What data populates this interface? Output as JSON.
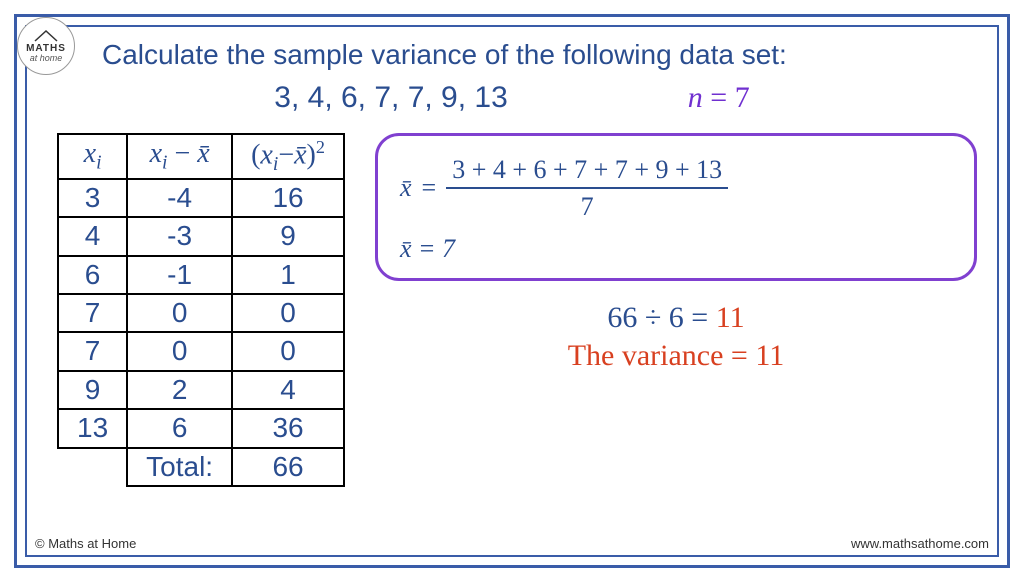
{
  "logo": {
    "text1": "MATHS",
    "text2": "at home"
  },
  "title": "Calculate the sample variance of the following data set:",
  "data_set_text": "3, 4, 6, 7, 7, 9, 13",
  "n_equation": {
    "var": "n",
    "eq": "=",
    "val": "7"
  },
  "table": {
    "headers": {
      "h1_var": "x",
      "h1_sub": "i",
      "h2_var1": "x",
      "h2_sub1": "i",
      "h2_minus": " − ",
      "h2_var2": "x̄",
      "h3_open": "(",
      "h3_var1": "x",
      "h3_sub1": "i",
      "h3_minus": "−",
      "h3_var2": "x̄",
      "h3_close": ")",
      "h3_sup": "2"
    },
    "rows": [
      {
        "xi": "3",
        "diff": "-4",
        "sq": "16"
      },
      {
        "xi": "4",
        "diff": "-3",
        "sq": "9"
      },
      {
        "xi": "6",
        "diff": "-1",
        "sq": "1"
      },
      {
        "xi": "7",
        "diff": "0",
        "sq": "0"
      },
      {
        "xi": "7",
        "diff": "0",
        "sq": "0"
      },
      {
        "xi": "9",
        "diff": "2",
        "sq": "4"
      },
      {
        "xi": "13",
        "diff": "6",
        "sq": "36"
      }
    ],
    "total_label": "Total:",
    "total_value": "66"
  },
  "mean_box": {
    "xbar": "x̄",
    "eq": "=",
    "numerator": "3 + 4 + 6 + 7 + 7 + 9 + 13",
    "denominator": "7",
    "result_line": "x̄ = 7"
  },
  "result": {
    "calc": "66 ÷ 6 = ",
    "calc_ans": "11",
    "variance_line": "The variance = 11"
  },
  "footer": {
    "left": "© Maths at Home",
    "right": "www.mathsathome.com"
  },
  "colors": {
    "frame": "#3a5ca8",
    "text_blue": "#2a4d8f",
    "purple": "#7030d0",
    "box_purple": "#8040d0",
    "red": "#d84020"
  }
}
